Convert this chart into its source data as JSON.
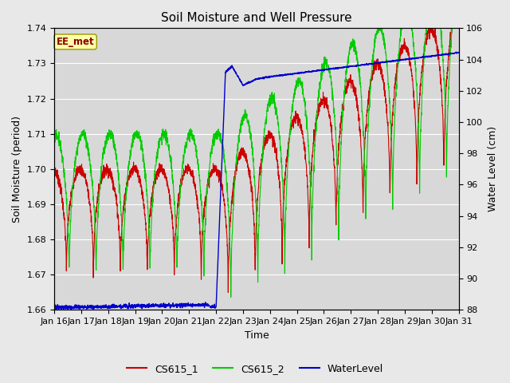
{
  "title": "Soil Moisture and Well Pressure",
  "xlabel": "Time",
  "ylabel_left": "Soil Moisture (period)",
  "ylabel_right": "Water Level (cm)",
  "annotation": "EE_met",
  "ylim_left": [
    1.66,
    1.74
  ],
  "ylim_right": [
    88,
    106
  ],
  "yticks_left": [
    1.66,
    1.67,
    1.68,
    1.69,
    1.7,
    1.71,
    1.72,
    1.73,
    1.74
  ],
  "yticks_right": [
    88,
    90,
    92,
    94,
    96,
    98,
    100,
    102,
    104,
    106
  ],
  "xtick_labels": [
    "Jan 16",
    "Jan 17",
    "Jan 18",
    "Jan 19",
    "Jan 20",
    "Jan 21",
    "Jan 22",
    "Jan 23",
    "Jan 24",
    "Jan 25",
    "Jan 26",
    "Jan 27",
    "Jan 28",
    "Jan 29",
    "Jan 30",
    "Jan 31"
  ],
  "color_cs1": "#cc0000",
  "color_cs2": "#00cc00",
  "color_wl": "#0000cc",
  "bg_color": "#e8e8e8",
  "plot_bg_color": "#d8d8d8",
  "legend_labels": [
    "CS615_1",
    "CS615_2",
    "WaterLevel"
  ],
  "title_fontsize": 11,
  "axis_fontsize": 9,
  "tick_fontsize": 8
}
